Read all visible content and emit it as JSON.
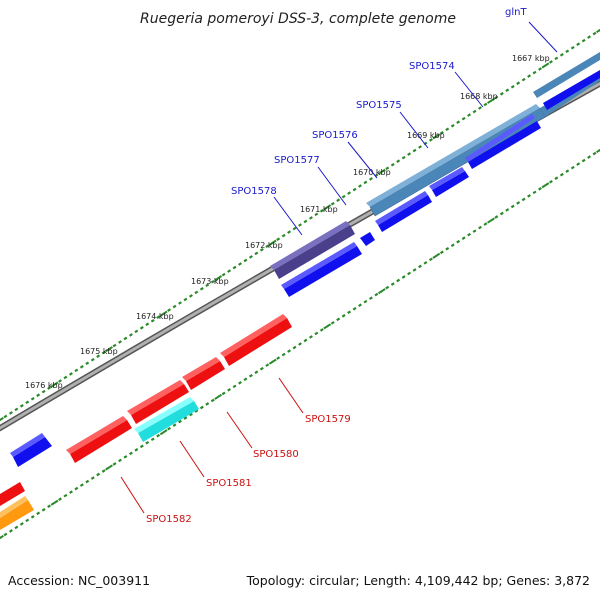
{
  "title": "Ruegeria pomeroyi DSS-3, complete genome",
  "footer": {
    "accession": "Accession: NC_003911",
    "summary": "Topology: circular; Length: 4,109,442 bp; Genes: 3,872"
  },
  "colors": {
    "backbone": "#8a8a8a",
    "tick": "#2a8a2a",
    "forward_gene": "#1010ee",
    "reverse_gene": "#ee1010",
    "label_forward": "#1a1acc",
    "label_reverse": "#cc1111",
    "steelblue_gene": "#4a86b8",
    "purple_gene": "#4a3f8a",
    "cyan_gene": "#22dddd",
    "orange_gene": "#ff9a10"
  },
  "ticks": {
    "unit": "kbp",
    "labels": [
      "1667 kbp",
      "1668 kbp",
      "1669 kbp",
      "1670 kbp",
      "1671 kbp",
      "1672 kbp",
      "1673 kbp",
      "1674 kbp",
      "1675 kbp",
      "1676 kbp"
    ]
  },
  "gene_labels_forward": [
    "glnT",
    "SPO1574",
    "SPO1575",
    "SPO1576",
    "SPO1577",
    "SPO1578"
  ],
  "gene_labels_reverse": [
    "SPO1579",
    "SPO1580",
    "SPO1581",
    "SPO1582"
  ]
}
